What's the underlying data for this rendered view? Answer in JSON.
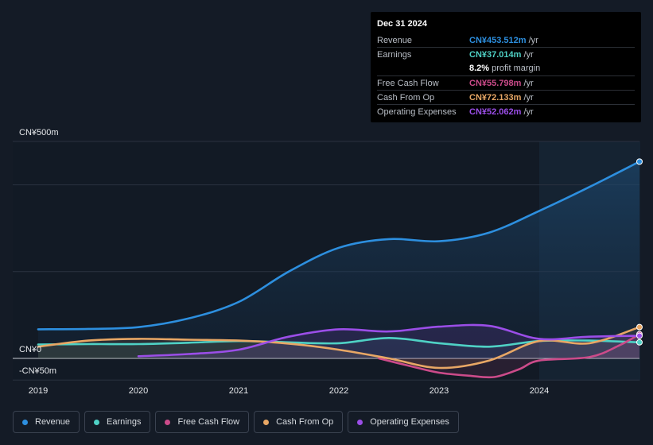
{
  "chart_data": {
    "type": "line",
    "x_ticks": [
      "2019",
      "2020",
      "2021",
      "2022",
      "2023",
      "2024"
    ],
    "y_ticks": {
      "top": "CN¥500m",
      "zero": "CN¥0",
      "bottom": "-CN¥50m"
    },
    "ylim": [
      -50,
      500
    ],
    "xlim": [
      2019.0,
      2025.0
    ],
    "series": [
      {
        "name": "Revenue",
        "color": "#2d8fdf",
        "x": [
          2019.0,
          2019.5,
          2020.0,
          2020.5,
          2021.0,
          2021.5,
          2022.0,
          2022.5,
          2023.0,
          2023.5,
          2024.0,
          2024.5,
          2025.0
        ],
        "values": [
          67,
          68,
          72,
          92,
          130,
          200,
          255,
          275,
          270,
          290,
          340,
          395,
          453.5
        ]
      },
      {
        "name": "Earnings",
        "color": "#4fd1c5",
        "x": [
          2019.0,
          2019.5,
          2020.0,
          2020.5,
          2021.0,
          2021.5,
          2022.0,
          2022.5,
          2023.0,
          2023.5,
          2024.0,
          2024.5,
          2025.0
        ],
        "values": [
          32,
          33,
          33,
          36,
          40,
          37,
          35,
          47,
          35,
          27,
          40,
          41,
          37
        ]
      },
      {
        "name": "Free Cash Flow",
        "color": "#cc4b8a",
        "x": [
          2022.4,
          2022.75,
          2023.0,
          2023.3,
          2023.55,
          2023.8,
          2024.0,
          2024.5,
          2024.8,
          2025.0
        ],
        "values": [
          0,
          -20,
          -33,
          -40,
          -43,
          -25,
          -5,
          3,
          30,
          55.8
        ]
      },
      {
        "name": "Cash From Op",
        "color": "#e8a765",
        "x": [
          2019.0,
          2019.5,
          2020.0,
          2020.5,
          2021.0,
          2021.5,
          2022.0,
          2022.5,
          2023.0,
          2023.5,
          2024.0,
          2024.5,
          2025.0
        ],
        "values": [
          27,
          41,
          45,
          43,
          41,
          34,
          20,
          0,
          -22,
          -5,
          40,
          35,
          72.1
        ]
      },
      {
        "name": "Operating Expenses",
        "color": "#9b4ee8",
        "x": [
          2020.0,
          2020.5,
          2021.0,
          2021.5,
          2022.0,
          2022.5,
          2023.0,
          2023.5,
          2024.0,
          2024.5,
          2025.0
        ],
        "values": [
          5,
          10,
          20,
          50,
          67,
          62,
          73,
          75,
          45,
          50,
          52.1
        ]
      }
    ],
    "tooltip": {
      "date": "Dec 31 2024",
      "rows": [
        {
          "label": "Revenue",
          "value": "CN¥453.512m",
          "unit": "/yr",
          "color": "#2d8fdf"
        },
        {
          "label": "Earnings",
          "value": "CN¥37.014m",
          "unit": "/yr",
          "color": "#4fd1c5"
        },
        {
          "label": "",
          "value": "8.2%",
          "unit": "profit margin",
          "color": "#ffffff"
        },
        {
          "label": "Free Cash Flow",
          "value": "CN¥55.798m",
          "unit": "/yr",
          "color": "#cc4b8a"
        },
        {
          "label": "Cash From Op",
          "value": "CN¥72.133m",
          "unit": "/yr",
          "color": "#e8a765"
        },
        {
          "label": "Operating Expenses",
          "value": "CN¥52.062m",
          "unit": "/yr",
          "color": "#9b4ee8"
        }
      ]
    }
  }
}
